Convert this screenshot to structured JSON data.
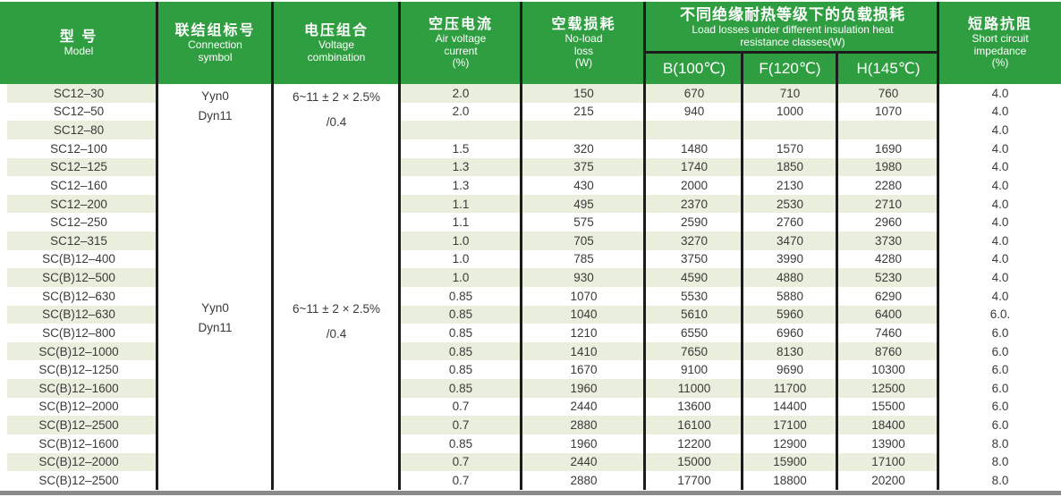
{
  "table": {
    "header": {
      "model_zh": "型 号",
      "model_en": "Model",
      "connection_zh": "联结组标号",
      "connection_en1": "Connection",
      "connection_en2": "symbol",
      "voltage_zh": "电压组合",
      "voltage_en1": "Voltage",
      "voltage_en2": "combination",
      "air_zh": "空压电流",
      "air_en1": "Air voltage",
      "air_en2": "current",
      "air_en3": "(%)",
      "noload_zh": "空载损耗",
      "noload_en1": "No-load",
      "noload_en2": "loss",
      "noload_en3": "(W)",
      "group_zh": "不同绝缘耐热等级下的负载损耗",
      "group_en1": "Load losses under different insulation heat",
      "group_en2": "resistance classes(W)",
      "sub_b": "B(100℃)",
      "sub_f": "F(120℃)",
      "sub_h": "H(145℃)",
      "impedance_zh": "短路抗阻",
      "impedance_en1": "Short circuit",
      "impedance_en2": "impedance",
      "impedance_en3": "(%)"
    },
    "merged": {
      "group1_connection_line1": "Yyn0",
      "group1_connection_line2": "Dyn11",
      "group1_voltage_line1": "6~11 ± 2 × 2.5%",
      "group1_voltage_line2": "/0.4",
      "group2_connection_line1": "Yyn0",
      "group2_connection_line2": "Dyn11",
      "group2_voltage_line1": "6~11 ± 2 × 2.5%",
      "group2_voltage_line2": "/0.4"
    },
    "rows": [
      {
        "model": "SC12–30",
        "air": "2.0",
        "noload": "150",
        "b": "670",
        "f": "710",
        "h": "760",
        "z": "4.0"
      },
      {
        "model": "SC12–50",
        "air": "2.0",
        "noload": "215",
        "b": "940",
        "f": "1000",
        "h": "1070",
        "z": "4.0"
      },
      {
        "model": "SC12–80",
        "air": "",
        "noload": "",
        "b": "",
        "f": "",
        "h": "",
        "z": "4.0"
      },
      {
        "model": "SC12–100",
        "air": "1.5",
        "noload": "320",
        "b": "1480",
        "f": "1570",
        "h": "1690",
        "z": "4.0"
      },
      {
        "model": "SC12–125",
        "air": "1.3",
        "noload": "375",
        "b": "1740",
        "f": "1850",
        "h": "1980",
        "z": "4.0"
      },
      {
        "model": "SC12–160",
        "air": "1.3",
        "noload": "430",
        "b": "2000",
        "f": "2130",
        "h": "2280",
        "z": "4.0"
      },
      {
        "model": "SC12–200",
        "air": "1.1",
        "noload": "495",
        "b": "2370",
        "f": "2530",
        "h": "2710",
        "z": "4.0"
      },
      {
        "model": "SC12–250",
        "air": "1.1",
        "noload": "575",
        "b": "2590",
        "f": "2760",
        "h": "2960",
        "z": "4.0"
      },
      {
        "model": "SC12–315",
        "air": "1.0",
        "noload": "705",
        "b": "3270",
        "f": "3470",
        "h": "3730",
        "z": "4.0"
      },
      {
        "model": "SC(B)12–400",
        "air": "1.0",
        "noload": "785",
        "b": "3750",
        "f": "3990",
        "h": "4280",
        "z": "4.0"
      },
      {
        "model": "SC(B)12–500",
        "air": "1.0",
        "noload": "930",
        "b": "4590",
        "f": "4880",
        "h": "5230",
        "z": "4.0"
      },
      {
        "model": "SC(B)12–630",
        "air": "0.85",
        "noload": "1070",
        "b": "5530",
        "f": "5880",
        "h": "6290",
        "z": "4.0"
      },
      {
        "model": "SC(B)12–630",
        "air": "0.85",
        "noload": "1040",
        "b": "5610",
        "f": "5960",
        "h": "6400",
        "z": "6.0."
      },
      {
        "model": "SC(B)12–800",
        "air": "0.85",
        "noload": "1210",
        "b": "6550",
        "f": "6960",
        "h": "7460",
        "z": "6.0"
      },
      {
        "model": "SC(B)12–1000",
        "air": "0.85",
        "noload": "1410",
        "b": "7650",
        "f": "8130",
        "h": "8760",
        "z": "6.0"
      },
      {
        "model": "SC(B)12–1250",
        "air": "0.85",
        "noload": "1670",
        "b": "9100",
        "f": "9690",
        "h": "10300",
        "z": "6.0"
      },
      {
        "model": "SC(B)12–1600",
        "air": "0.85",
        "noload": "1960",
        "b": "11000",
        "f": "11700",
        "h": "12500",
        "z": "6.0"
      },
      {
        "model": "SC(B)12–2000",
        "air": "0.7",
        "noload": "2440",
        "b": "13600",
        "f": "14400",
        "h": "15500",
        "z": "6.0"
      },
      {
        "model": "SC(B)12–2500",
        "air": "0.7",
        "noload": "2880",
        "b": "16100",
        "f": "17100",
        "h": "18400",
        "z": "6.0"
      },
      {
        "model": "SC(B)12–1600",
        "air": "0.85",
        "noload": "1960",
        "b": "12200",
        "f": "12900",
        "h": "13900",
        "z": "8.0"
      },
      {
        "model": "SC(B)12–2000",
        "air": "0.7",
        "noload": "2440",
        "b": "15000",
        "f": "15900",
        "h": "17100",
        "z": "8.0"
      },
      {
        "model": "SC(B)12–2500",
        "air": "0.7",
        "noload": "2880",
        "b": "17700",
        "f": "18800",
        "h": "20200",
        "z": "8.0"
      }
    ]
  },
  "colors": {
    "header_green": "#2f9e41",
    "row_stripe": "#eaeedc",
    "grid_line_black": "#1c1c1c",
    "bottom_bar_gray": "#8a8a8a",
    "data_text": "#3a3a3a",
    "header_text": "#ffffff"
  }
}
